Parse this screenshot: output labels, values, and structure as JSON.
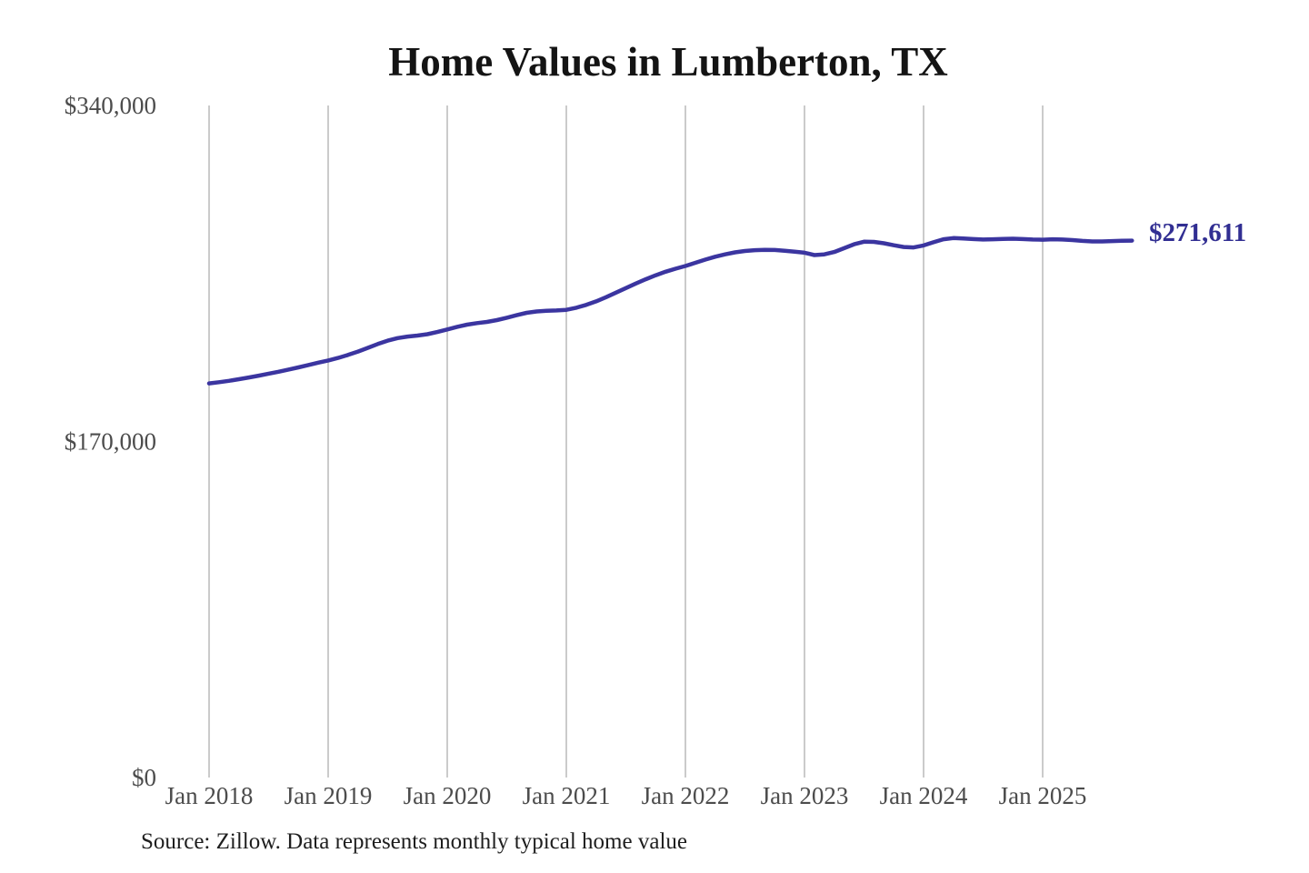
{
  "title": "Home Values in Lumberton, TX",
  "source_note": "Source: Zillow. Data represents monthly typical home value",
  "colors": {
    "line": "#3b35a0",
    "end_label": "#312e92",
    "grid": "#cbcbcb",
    "axis_text": "#4c4c4c",
    "title_text": "#141414",
    "source_text": "#1e1e1e",
    "background": "#ffffff"
  },
  "chart_data": {
    "type": "line",
    "title": "Home Values in Lumberton, TX",
    "xlabel": "",
    "ylabel": "",
    "ylim": [
      0,
      340000
    ],
    "ytick_values": [
      0,
      170000,
      340000
    ],
    "ytick_labels": [
      "$0",
      "$170,000",
      "$340,000"
    ],
    "xtick_labels": [
      "Jan 2018",
      "Jan 2019",
      "Jan 2020",
      "Jan 2021",
      "Jan 2022",
      "Jan 2023",
      "Jan 2024",
      "Jan 2025"
    ],
    "x_start": "Jan 2018",
    "x_end": "Oct 2025",
    "x_interval": "monthly",
    "grid": "vertical year gridlines only",
    "legend_position": "none",
    "end_point_label": "$271,611",
    "end_point_value": 271611,
    "series": [
      {
        "name": "Monthly typical home value",
        "values": [
          199400,
          200000,
          200700,
          201500,
          202400,
          203300,
          204300,
          205300,
          206400,
          207500,
          208700,
          209900,
          211000,
          212300,
          213800,
          215500,
          217400,
          219300,
          221000,
          222300,
          223100,
          223600,
          224300,
          225400,
          226700,
          228000,
          229100,
          229900,
          230500,
          231400,
          232600,
          233900,
          235100,
          235800,
          236100,
          236300,
          236600,
          237700,
          239100,
          240900,
          243000,
          245300,
          247600,
          249900,
          252100,
          254100,
          255900,
          257400,
          258800,
          260400,
          262000,
          263500,
          264700,
          265700,
          266400,
          266800,
          267000,
          266900,
          266500,
          266000,
          265500,
          264300,
          264700,
          265900,
          267800,
          269800,
          271100,
          271000,
          270300,
          269300,
          268400,
          268200,
          269200,
          270800,
          272300,
          272900,
          272700,
          272400,
          272200,
          272300,
          272500,
          272600,
          272400,
          272200,
          272100,
          272300,
          272200,
          271900,
          271500,
          271200,
          271200,
          271400,
          271600,
          271611
        ]
      }
    ]
  }
}
